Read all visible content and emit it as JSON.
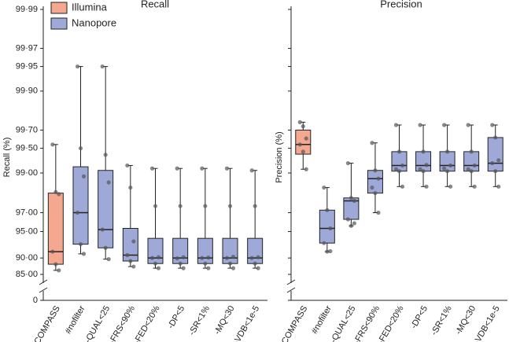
{
  "chart_data": [
    {
      "type": "box",
      "title": "Recall",
      "ylabel": "Recall (%)",
      "yscale": "logit",
      "legend": "upper left",
      "categories": [
        "COMPASS",
        "#nofilter",
        "-QUAL<25",
        "-FRS<90%",
        "-FED<20%",
        "-DP<5",
        "-SR<1%",
        "-MQ<30",
        "-VDB<1e-5"
      ],
      "ylim": [
        0,
        99.99
      ],
      "yticks": [
        0,
        {
          "value": 85,
          "label": "85·00"
        },
        {
          "value": 90,
          "label": "90·00"
        },
        {
          "value": 95,
          "label": "95·00"
        },
        {
          "value": 97,
          "label": "97·00"
        },
        {
          "value": 99,
          "label": "99·00"
        },
        {
          "value": 99.5,
          "label": "99·50"
        },
        {
          "value": 99.7,
          "label": "99·70"
        },
        {
          "value": 99.9,
          "label": "99·90"
        },
        {
          "value": 99.95,
          "label": "99·95"
        },
        {
          "value": 99.97,
          "label": "99·97"
        },
        {
          "value": 99.99,
          "label": "99·99"
        }
      ],
      "series": [
        {
          "name": "Illumina",
          "color": "#f4a88f",
          "values": [
            {
              "min": 86.4,
              "q1": 88.3,
              "median": 91.5,
              "q3": 98.25,
              "max": 99.55,
              "points": [
                99.55,
                98.3,
                98.2,
                91.5,
                88.3,
                86.4
              ]
            },
            null,
            null,
            null,
            null,
            null,
            null,
            null,
            null
          ]
        },
        {
          "name": "Nanopore",
          "color": "#9ea9d8",
          "values": [
            null,
            {
              "min": 91,
              "q1": 93,
              "median": 97,
              "q3": 99.16,
              "max": 99.95,
              "points": [
                99.95,
                99.5,
                98.9,
                97,
                93,
                91
              ]
            },
            {
              "min": 89.7,
              "q1": 92.3,
              "median": 95.25,
              "q3": 99.07,
              "max": 99.95,
              "points": [
                99.95,
                99.4,
                98.7,
                95.25,
                92.3,
                89.7
              ]
            },
            {
              "min": 87.6,
              "q1": 89.2,
              "median": 90.7,
              "q3": 95.4,
              "max": 99.19,
              "points": [
                99.19,
                98.5,
                93.5,
                90.7,
                89.2,
                87.6
              ]
            },
            {
              "min": 87.1,
              "q1": 88.5,
              "median": 90,
              "q3": 94,
              "max": 99.12,
              "points": [
                99.12,
                97.5,
                90.2,
                90,
                88.5,
                87.1
              ]
            },
            {
              "min": 87.1,
              "q1": 88.5,
              "median": 90,
              "q3": 94,
              "max": 99.12,
              "points": [
                99.12,
                97.5,
                90.2,
                89.9,
                88.5,
                87.1
              ]
            },
            {
              "min": 87.1,
              "q1": 88.5,
              "median": 90,
              "q3": 94,
              "max": 99.12,
              "points": [
                99.12,
                97.5,
                90.1,
                90,
                88.5,
                87.1
              ]
            },
            {
              "min": 87.1,
              "q1": 88.5,
              "median": 90,
              "q3": 94,
              "max": 99.12,
              "points": [
                99.12,
                97.5,
                90.3,
                90,
                88.5,
                87.1
              ]
            },
            {
              "min": 87.1,
              "q1": 88.5,
              "median": 90,
              "q3": 94,
              "max": 99.07,
              "points": [
                99.07,
                97.5,
                90.2,
                90,
                88.5,
                87.1
              ]
            }
          ]
        }
      ]
    },
    {
      "type": "box",
      "title": "Precision",
      "ylabel": "Precision (%)",
      "yscale": "logit",
      "categories": [
        "COMPASS",
        "#nofilter",
        "-QUAL<25",
        "-FRS<90%",
        "-FED<20%",
        "-DP<5",
        "-SR<1%",
        "-MQ<30",
        "-VDB<1e-5"
      ],
      "ylim": [
        0,
        99.99
      ],
      "yticks": [
        0,
        85,
        90,
        95,
        97,
        99,
        99.5,
        99.7,
        99.9,
        99.95,
        99.97,
        99.99
      ],
      "series": [
        {
          "name": "Illumina",
          "color": "#f4a88f",
          "values": [
            {
              "min": 99.1,
              "q1": 99.41,
              "median": 99.55,
              "q3": 99.7,
              "max": 99.76,
              "points": [
                99.76,
                99.73,
                99.62,
                99.55,
                99.45,
                99.1
              ]
            },
            null,
            null,
            null,
            null,
            null,
            null,
            null,
            null
          ]
        },
        {
          "name": "Nanopore",
          "color": "#9ea9d8",
          "values": [
            null,
            {
              "min": 91.5,
              "q1": 93.2,
              "median": 95.4,
              "q3": 97.2,
              "max": 98.5,
              "points": [
                98.5,
                97.2,
                95.4,
                93.2,
                91.5,
                91.6
              ]
            },
            {
              "min": 95.7,
              "q1": 96.4,
              "median": 97.83,
              "q3": 98,
              "max": 99.24,
              "points": [
                99.24,
                98,
                97.83,
                96.4,
                95.7,
                96
              ]
            },
            {
              "min": 97,
              "q1": 98.25,
              "median": 98.83,
              "q3": 99.07,
              "max": 99.57,
              "points": [
                99.57,
                99.07,
                98.83,
                98.5,
                98.25,
                97
              ]
            },
            {
              "min": 98.54,
              "q1": 99.05,
              "median": 99.19,
              "q3": 99.45,
              "max": 99.74,
              "points": [
                99.74,
                99.45,
                99.19,
                99.1,
                99.05,
                98.54
              ]
            },
            {
              "min": 98.54,
              "q1": 99.05,
              "median": 99.19,
              "q3": 99.45,
              "max": 99.74,
              "points": [
                99.74,
                99.45,
                99.2,
                99.1,
                99.05,
                98.54
              ]
            },
            {
              "min": 98.54,
              "q1": 99.05,
              "median": 99.19,
              "q3": 99.45,
              "max": 99.74,
              "points": [
                99.74,
                99.45,
                99.19,
                99.12,
                99.05,
                98.54
              ]
            },
            {
              "min": 98.54,
              "q1": 99.05,
              "median": 99.19,
              "q3": 99.45,
              "max": 99.74,
              "points": [
                99.74,
                99.45,
                99.19,
                99.1,
                99.05,
                98.54
              ]
            },
            {
              "min": 98.54,
              "q1": 99.05,
              "median": 99.24,
              "q3": 99.63,
              "max": 99.74,
              "points": [
                99.74,
                99.63,
                99.3,
                99.24,
                99.05,
                98.54
              ]
            }
          ]
        }
      ]
    }
  ]
}
